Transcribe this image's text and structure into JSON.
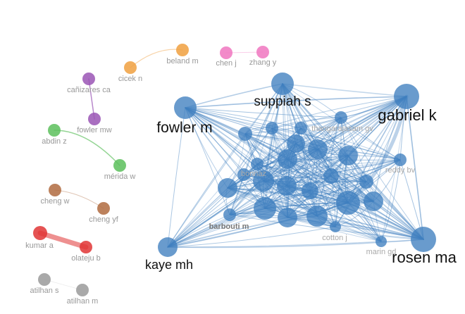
{
  "colors": {
    "blue": "#3f7fbf",
    "orange": "#f0a040",
    "pink": "#f075c0",
    "purple": "#9a55b5",
    "green": "#5cbf5c",
    "brown": "#b06b40",
    "red": "#e03535",
    "gray": "#9a9a9a"
  },
  "network": {
    "small_clusters": [
      {
        "color_key": "orange",
        "nodes": [
          "cicek n",
          "beland m"
        ]
      },
      {
        "color_key": "pink",
        "nodes": [
          "chen j",
          "zhang y"
        ]
      },
      {
        "color_key": "purple",
        "nodes": [
          "cañizares ca",
          "fowler mw"
        ]
      },
      {
        "color_key": "green",
        "nodes": [
          "abdin z",
          "mérida w"
        ]
      },
      {
        "color_key": "brown",
        "nodes": [
          "cheng w",
          "cheng yf"
        ]
      },
      {
        "color_key": "red",
        "nodes": [
          "kumar a",
          "olateju b"
        ]
      },
      {
        "color_key": "gray",
        "nodes": [
          "atilhan s",
          "atilhan m"
        ]
      }
    ],
    "main_cluster": {
      "color_key": "blue",
      "labeled_nodes": [
        "suppiah s",
        "gabriel k",
        "fowler m",
        "kaye mh",
        "rosen ma",
        "thangarajasam gv",
        "reddy bv",
        "bonnaz",
        "barbouti m",
        "cotton j",
        "marin gd"
      ]
    }
  }
}
